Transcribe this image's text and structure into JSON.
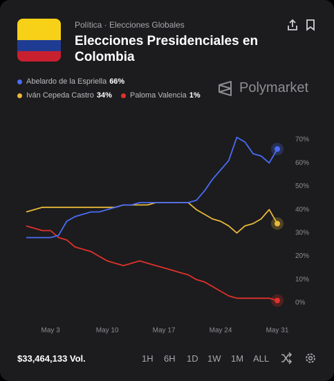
{
  "header": {
    "breadcrumb": "Política · Elecciones Globales",
    "title": "Elecciones Presidenciales en Colombia",
    "brand": "Polymarket"
  },
  "footer": {
    "volume": "$33,464,133 Vol.",
    "ranges": [
      "1H",
      "6H",
      "1D",
      "1W",
      "1M",
      "ALL"
    ]
  },
  "chart_data": {
    "type": "line",
    "categories": [
      null,
      null,
      null,
      "May 3",
      null,
      null,
      null,
      null,
      null,
      null,
      "May 10",
      null,
      null,
      null,
      null,
      null,
      null,
      "May 17",
      null,
      null,
      null,
      null,
      null,
      null,
      "May 24",
      null,
      null,
      null,
      null,
      null,
      null,
      "May 31"
    ],
    "series": [
      {
        "name": "Abelardo de la Espriella",
        "color": "#4a6cf7",
        "legend_value": {
          "value": 66,
          "label": "66%"
        },
        "values": [
          28,
          28,
          28,
          28,
          29,
          35,
          37,
          38,
          39,
          39,
          40,
          41,
          42,
          42,
          43,
          43,
          43,
          43,
          43,
          43,
          43,
          44,
          48,
          53,
          57,
          61,
          71,
          69,
          64,
          63,
          60,
          66
        ]
      },
      {
        "name": "Iván Cepeda Castro",
        "color": "#e8b93a",
        "legend_value": {
          "value": 34,
          "label": "34%"
        },
        "values": [
          39,
          40,
          41,
          41,
          41,
          41,
          41,
          41,
          41,
          41,
          41,
          41,
          42,
          42,
          42,
          42,
          43,
          43,
          43,
          43,
          43,
          40,
          38,
          36,
          35,
          33,
          30,
          33,
          34,
          36,
          40,
          34
        ]
      },
      {
        "name": "Paloma Valencia",
        "color": "#e0312b",
        "legend_value": {
          "value": 1,
          "label": "1%"
        },
        "values": [
          33,
          32,
          31,
          31,
          28,
          27,
          24,
          23,
          22,
          20,
          18,
          17,
          16,
          17,
          18,
          17,
          16,
          15,
          14,
          13,
          12,
          10,
          9,
          7,
          5,
          3,
          2,
          2,
          2,
          2,
          2,
          1
        ]
      }
    ],
    "ylim": [
      0,
      70
    ],
    "yticks": [
      {
        "value": 0,
        "label": "0%"
      },
      {
        "value": 10,
        "label": "10%"
      },
      {
        "value": 20,
        "label": "20%"
      },
      {
        "value": 30,
        "label": "30%"
      },
      {
        "value": 40,
        "label": "40%"
      },
      {
        "value": 50,
        "label": "50%"
      },
      {
        "value": 60,
        "label": "60%"
      },
      {
        "value": 70,
        "label": "70%"
      }
    ],
    "grid": false
  }
}
